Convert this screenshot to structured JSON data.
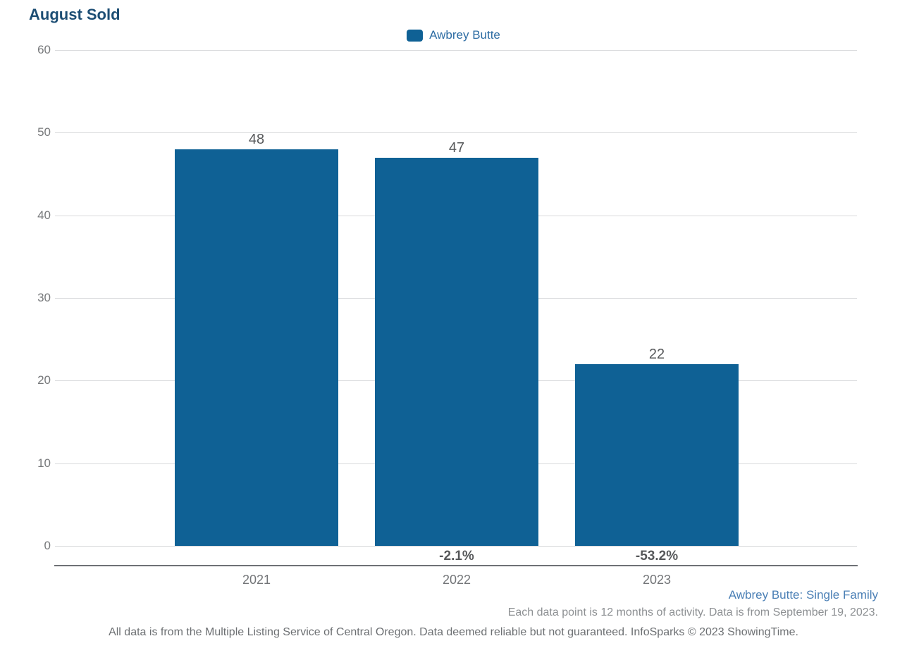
{
  "title": "August Sold",
  "legend": {
    "label": "Awbrey Butte",
    "swatch_color": "#0f6195"
  },
  "chart_data": {
    "type": "bar",
    "title": "August Sold",
    "series_name": "Awbrey Butte",
    "categories": [
      "2021",
      "2022",
      "2023"
    ],
    "values": [
      48,
      47,
      22
    ],
    "value_labels": [
      "48",
      "47",
      "22"
    ],
    "pct_change_labels": [
      null,
      "-2.1%",
      "-53.2%"
    ],
    "xlabel": "",
    "ylabel": "",
    "ylim": [
      0,
      60
    ],
    "yticks": [
      0,
      10,
      20,
      30,
      40,
      50,
      60
    ],
    "grid": "horizontal",
    "legend_position": "top-center",
    "bar_color": "#0f6195"
  },
  "footer": {
    "series_scope": "Awbrey Butte: Single Family",
    "data_note": "Each data point is 12 months of activity. Data is from September 19, 2023.",
    "disclaimer": "All data is from the Multiple Listing Service of Central Oregon. Data deemed reliable but not guaranteed. InfoSparks © 2023 ShowingTime."
  },
  "colors": {
    "bar": "#0f6195",
    "title_text": "#1d4e74",
    "legend_text": "#2d6ca3",
    "scope_text": "#4a7fb5",
    "gridline": "#d9dadc",
    "axis_line": "#6e7175",
    "tick_text": "#77797b",
    "value_text": "#56585a"
  }
}
